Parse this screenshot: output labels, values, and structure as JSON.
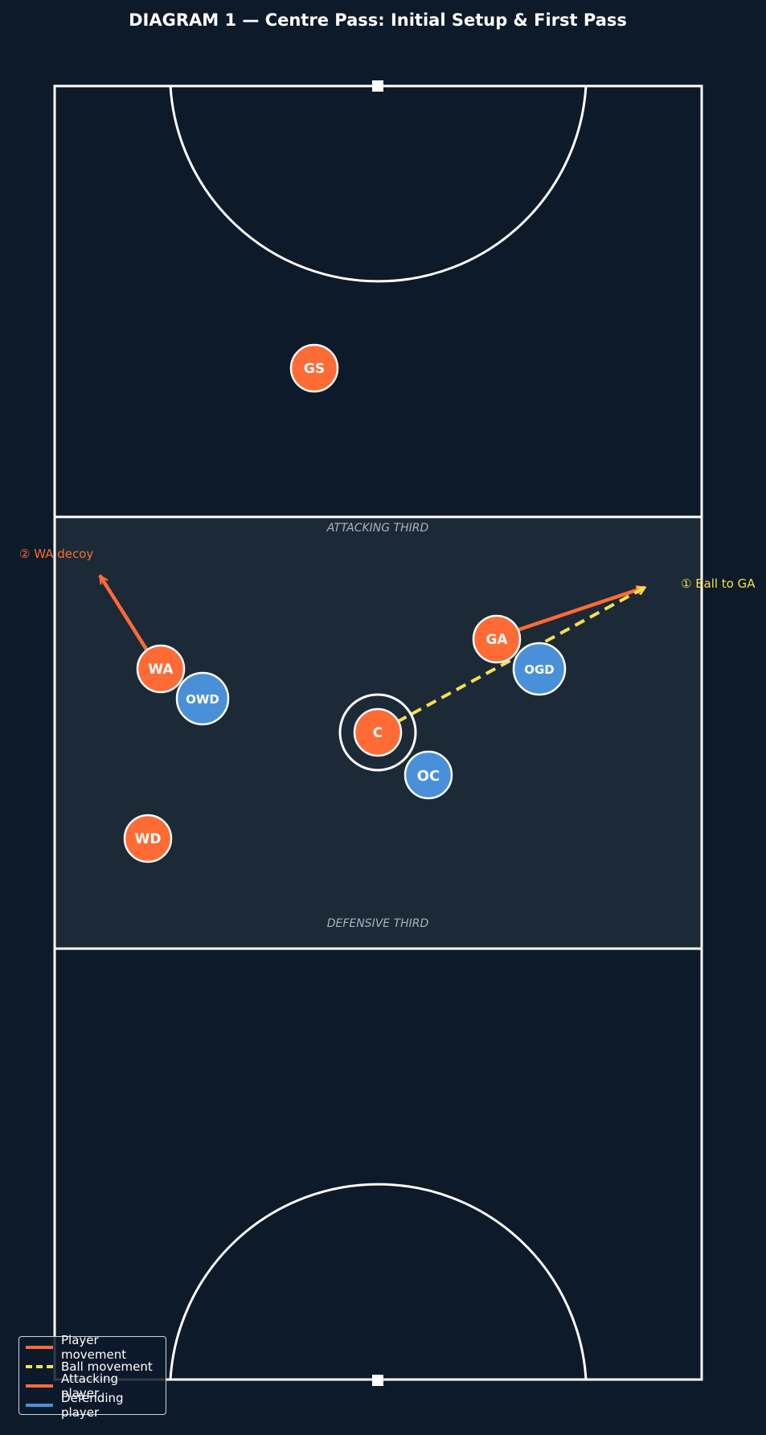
{
  "title": "DIAGRAM 1 — Centre Pass: Initial Setup & First Pass",
  "zones": {
    "attacking_label": "ATTACKING THIRD",
    "defensive_label": "DEFENSIVE THIRD"
  },
  "players": {
    "attack": [
      "GS",
      "GA",
      "WA",
      "C",
      "WD"
    ],
    "defence": [
      "OGD",
      "OWD",
      "OC"
    ]
  },
  "annotations": {
    "ball": "① Ball to GA",
    "decoy": "② WA decoy"
  },
  "legend": {
    "player_movement": "Player movement",
    "ball_movement": "Ball movement",
    "attacking_player": "Attacking player",
    "defending_player": "Defending player"
  },
  "colors": {
    "background": "#0d1a2a",
    "centre_third": "#1c2937",
    "court_lines": "#ffffff",
    "attacking": "#ff6b35",
    "defending": "#4a90d9",
    "ball": "#f4e04d",
    "zone_label": "#a9b3bf"
  }
}
